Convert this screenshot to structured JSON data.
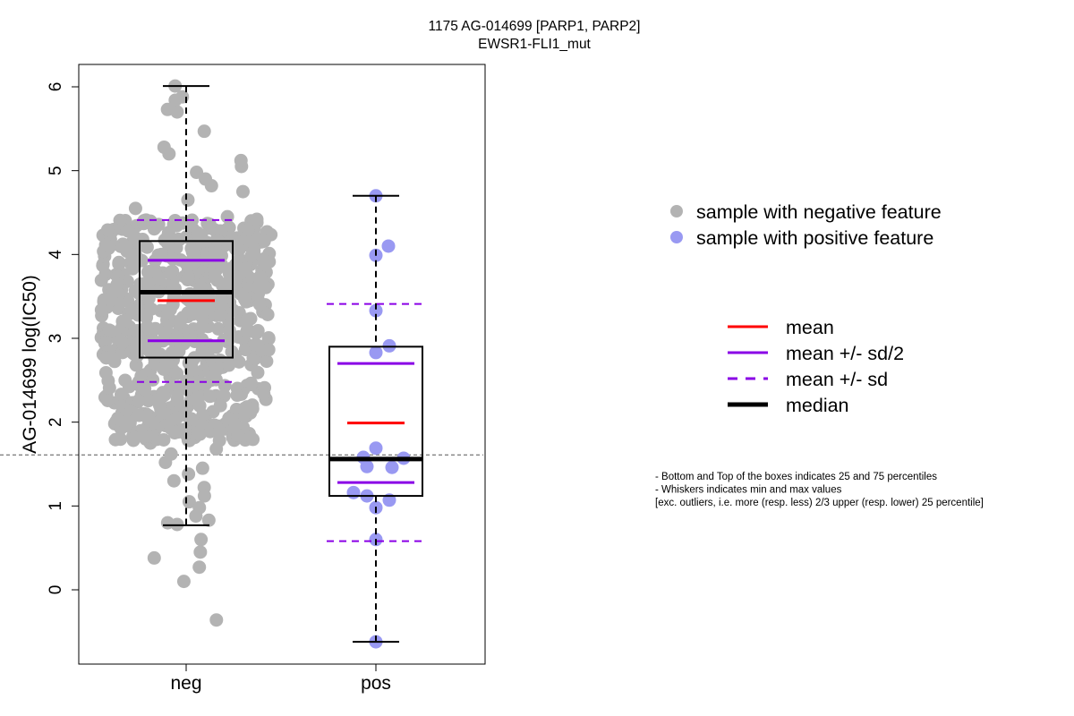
{
  "chart_data": {
    "type": "box",
    "title": "1175 AG-014699 [PARP1, PARP2]",
    "subtitle": "EWSR1-FLI1_mut",
    "ylabel": "AG-014699 log(IC50)",
    "xlabel": "",
    "categories": [
      "neg",
      "pos"
    ],
    "ylim": [
      -0.9,
      6.25
    ],
    "yticks": [
      0,
      1,
      2,
      3,
      4,
      5,
      6
    ],
    "threshold_line": 1.61,
    "grid": false,
    "groups": [
      {
        "name": "neg",
        "color": "#b3b3b3",
        "whisker_low": 0.77,
        "q1": 2.77,
        "median": 3.55,
        "q3": 4.16,
        "whisker_high": 6.01,
        "mean": 3.45,
        "mean_minus_half_sd": 2.97,
        "mean_plus_half_sd": 3.93,
        "mean_minus_sd": 2.48,
        "mean_plus_sd": 4.41,
        "low_values": [
          1.75,
          1.68,
          1.62,
          1.52,
          1.45,
          1.38,
          1.3,
          1.22,
          1.12,
          1.05,
          0.98,
          0.88,
          0.83,
          0.8,
          0.78,
          0.6,
          0.45,
          0.38,
          0.27,
          0.1,
          -0.36
        ],
        "high_values": [
          4.45,
          4.55,
          4.65,
          4.75,
          4.82,
          4.9,
          4.98,
          5.05,
          5.12,
          5.2,
          5.28,
          5.47,
          5.7,
          5.73,
          5.84,
          5.88,
          6.01
        ]
      },
      {
        "name": "pos",
        "color": "#9999f2",
        "whisker_low": -0.62,
        "q1": 1.12,
        "median": 1.56,
        "q3": 2.9,
        "whisker_high": 4.7,
        "mean": 1.99,
        "mean_minus_half_sd": 1.28,
        "mean_plus_half_sd": 2.7,
        "mean_minus_sd": 0.58,
        "mean_plus_sd": 3.41,
        "points": [
          4.7,
          4.1,
          3.99,
          3.33,
          2.91,
          2.83,
          1.69,
          1.58,
          1.57,
          1.47,
          1.46,
          1.16,
          1.12,
          1.07,
          0.98,
          0.6,
          -0.62
        ]
      }
    ],
    "legend_points": [
      {
        "label": "sample with negative feature",
        "color": "#b3b3b3"
      },
      {
        "label": "sample with positive feature",
        "color": "#9999f2"
      }
    ],
    "legend_lines": [
      {
        "label": "mean",
        "color": "#ff0000",
        "style": "solid"
      },
      {
        "label": "mean +/- sd/2",
        "color": "#8a00e6",
        "style": "solid"
      },
      {
        "label": "mean +/- sd",
        "color": "#8a00e6",
        "style": "dashed"
      },
      {
        "label": "median",
        "color": "#000000",
        "style": "thick"
      }
    ],
    "legend_placement": "right",
    "notes": [
      "- Bottom and Top of the boxes indicates 25 and 75 percentiles",
      "- Whiskers indicates min and max values",
      "[exc. outliers, i.e. more (resp. less) 2/3 upper (resp. lower) 25 percentile]"
    ]
  }
}
